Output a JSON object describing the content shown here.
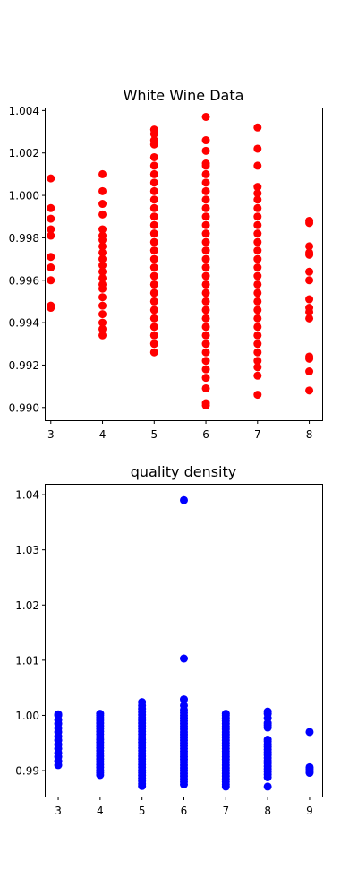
{
  "chart_data": [
    {
      "type": "scatter",
      "title": "White Wine Data",
      "xlabel": "",
      "ylabel": "",
      "color": "#ff0000",
      "xlim": [
        2.9,
        8.25
      ],
      "ylim": [
        0.9894,
        1.0041
      ],
      "xticks": [
        3,
        4,
        5,
        6,
        7,
        8
      ],
      "yticks": [
        0.99,
        0.992,
        0.994,
        0.996,
        0.998,
        1.0,
        1.002,
        1.004
      ],
      "ytick_labels": [
        "0.990",
        "0.992",
        "0.994",
        "0.996",
        "0.998",
        "1.000",
        "1.002",
        "1.004"
      ],
      "grid": false,
      "points_by_x": [
        {
          "x": 3,
          "y": [
            0.9947,
            0.9948,
            0.996,
            0.9966,
            0.9971,
            0.9981,
            0.9984,
            0.9989,
            0.9994,
            1.0008
          ]
        },
        {
          "x": 4,
          "y": [
            0.9934,
            0.9937,
            0.994,
            0.9944,
            0.9948,
            0.9952,
            0.9956,
            0.9958,
            0.9961,
            0.9964,
            0.9967,
            0.997,
            0.9973,
            0.9976,
            0.9979,
            0.9981,
            0.9984,
            0.9991,
            0.9996,
            1.0002,
            1.001
          ]
        },
        {
          "x": 5,
          "y": [
            0.9926,
            0.993,
            0.9934,
            0.9938,
            0.9942,
            0.9946,
            0.995,
            0.9954,
            0.9958,
            0.9962,
            0.9966,
            0.997,
            0.9974,
            0.9978,
            0.9982,
            0.9986,
            0.999,
            0.9994,
            0.9998,
            1.0002,
            1.0006,
            1.001,
            1.0014,
            1.0018,
            1.0024,
            1.0026,
            1.0029,
            1.0031
          ]
        },
        {
          "x": 6,
          "y": [
            0.9901,
            0.9902,
            0.9909,
            0.9914,
            0.9918,
            0.9922,
            0.9926,
            0.993,
            0.9934,
            0.9938,
            0.9942,
            0.9946,
            0.995,
            0.9954,
            0.9958,
            0.9962,
            0.9966,
            0.997,
            0.9974,
            0.9978,
            0.9982,
            0.9986,
            0.999,
            0.9994,
            0.9998,
            1.0002,
            1.0006,
            1.001,
            1.0014,
            1.0015,
            1.0021,
            1.0026,
            1.0037
          ]
        },
        {
          "x": 7,
          "y": [
            0.9906,
            0.9915,
            0.9919,
            0.9922,
            0.9926,
            0.993,
            0.9934,
            0.9938,
            0.9942,
            0.9946,
            0.995,
            0.9954,
            0.9958,
            0.9962,
            0.9966,
            0.997,
            0.9974,
            0.9978,
            0.9982,
            0.9986,
            0.999,
            0.9994,
            0.9998,
            1.0001,
            1.0004,
            1.0014,
            1.0022,
            1.0032
          ]
        },
        {
          "x": 8,
          "y": [
            0.9908,
            0.9917,
            0.9923,
            0.9924,
            0.9942,
            0.9945,
            0.9947,
            0.9951,
            0.996,
            0.9964,
            0.9972,
            0.9973,
            0.9976,
            0.9987,
            0.9988
          ]
        }
      ]
    },
    {
      "type": "scatter",
      "title": "quality density",
      "xlabel": "",
      "ylabel": "",
      "color": "#0000ff",
      "xlim": [
        2.7,
        9.3
      ],
      "ylim": [
        0.9853,
        1.0418
      ],
      "xticks": [
        3,
        4,
        5,
        6,
        7,
        8,
        9
      ],
      "yticks": [
        0.99,
        1.0,
        1.01,
        1.02,
        1.03,
        1.04
      ],
      "ytick_labels": [
        "0.99",
        "1.00",
        "1.01",
        "1.02",
        "1.03",
        "1.04"
      ],
      "grid": false,
      "points_by_x": [
        {
          "x": 3,
          "y": [
            0.991,
            0.9917,
            0.9925,
            0.9932,
            0.994,
            0.9947,
            0.9955,
            0.9962,
            0.997,
            0.9977,
            0.9985,
            0.9992,
            1.0,
            1.0002
          ]
        },
        {
          "x": 4,
          "y": [
            0.9892,
            0.9896,
            0.9901,
            0.9906,
            0.9911,
            0.9916,
            0.9921,
            0.9926,
            0.9931,
            0.9936,
            0.9941,
            0.9946,
            0.9951,
            0.9956,
            0.9961,
            0.9966,
            0.9971,
            0.9976,
            0.9981,
            0.9986,
            0.9991,
            0.9996,
            1.0,
            1.0003
          ]
        },
        {
          "x": 5,
          "y": [
            0.9872,
            0.9876,
            0.9881,
            0.9886,
            0.9891,
            0.9896,
            0.9901,
            0.9906,
            0.9911,
            0.9916,
            0.9921,
            0.9926,
            0.9931,
            0.9936,
            0.9941,
            0.9946,
            0.9951,
            0.9956,
            0.9961,
            0.9966,
            0.9971,
            0.9976,
            0.9981,
            0.9986,
            0.9991,
            0.9996,
            1.0001,
            1.0006,
            1.0012,
            1.0018,
            1.0024
          ]
        },
        {
          "x": 6,
          "y": [
            0.9875,
            0.988,
            0.9885,
            0.989,
            0.9895,
            0.99,
            0.9905,
            0.991,
            0.9915,
            0.992,
            0.9925,
            0.993,
            0.9935,
            0.994,
            0.9945,
            0.995,
            0.9955,
            0.996,
            0.9965,
            0.997,
            0.9975,
            0.998,
            0.9985,
            0.999,
            0.9995,
            1.0,
            1.0005,
            1.001,
            1.0018,
            1.0029,
            1.0103,
            1.039
          ]
        },
        {
          "x": 7,
          "y": [
            0.9871,
            0.9875,
            0.988,
            0.9885,
            0.989,
            0.9895,
            0.99,
            0.9905,
            0.991,
            0.9915,
            0.992,
            0.9925,
            0.993,
            0.9935,
            0.994,
            0.9945,
            0.995,
            0.9955,
            0.996,
            0.9965,
            0.997,
            0.9975,
            0.998,
            0.9985,
            0.999,
            0.9995,
            1.0,
            1.0003
          ]
        },
        {
          "x": 8,
          "y": [
            0.9871,
            0.9888,
            0.9893,
            0.9898,
            0.9903,
            0.9908,
            0.9913,
            0.9918,
            0.9923,
            0.9928,
            0.9933,
            0.9938,
            0.9943,
            0.9948,
            0.9953,
            0.9956,
            0.9978,
            0.9982,
            0.9986,
            0.9995,
            1.0003,
            1.0007
          ]
        },
        {
          "x": 9,
          "y": [
            0.9896,
            0.9899,
            0.9903,
            0.9906,
            0.997
          ]
        }
      ]
    }
  ]
}
